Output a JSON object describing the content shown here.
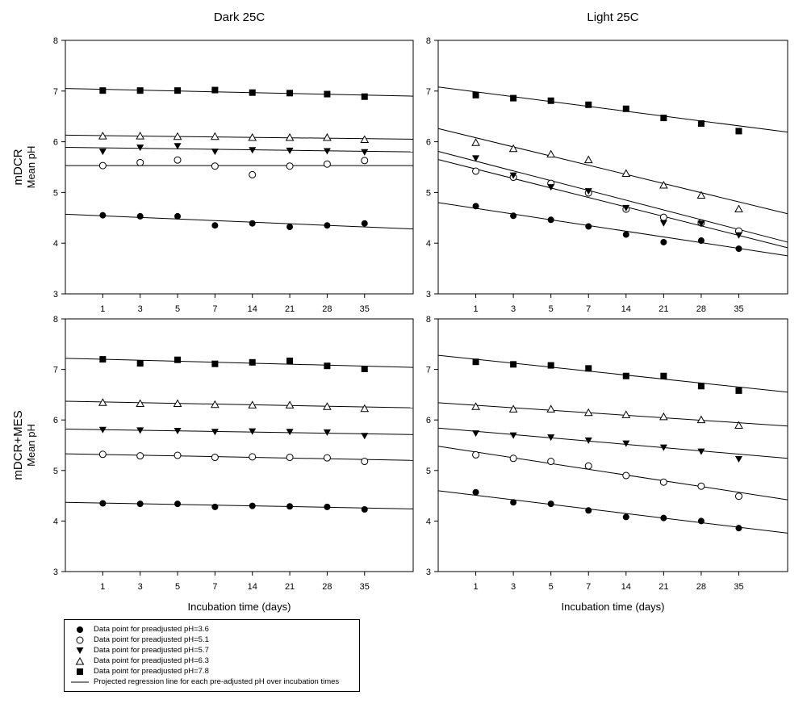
{
  "chart_data": [
    {
      "type": "scatter",
      "title": "Dark 25C",
      "row_label": "mDCR",
      "ylabel": "Mean pH",
      "xlabel": "",
      "ylim": [
        3,
        8
      ],
      "yticks": [
        "3",
        "4",
        "5",
        "6",
        "7",
        "8"
      ],
      "categories": [
        "1",
        "3",
        "5",
        "7",
        "14",
        "21",
        "28",
        "35"
      ],
      "series": [
        {
          "name": "Data point for preadjusted pH=3.6",
          "marker": "circle-filled",
          "values": [
            4.55,
            4.53,
            4.53,
            4.35,
            4.39,
            4.32,
            4.35,
            4.39
          ],
          "fit": [
            4.57,
            4.28
          ]
        },
        {
          "name": "Data point for preadjusted pH=5.1",
          "marker": "circle-open",
          "values": [
            5.53,
            5.59,
            5.64,
            5.52,
            5.35,
            5.52,
            5.56,
            5.63
          ],
          "fit": [
            5.53,
            5.53
          ]
        },
        {
          "name": "Data point for preadjusted pH=5.7",
          "marker": "triangle-down-filled",
          "values": [
            5.8,
            5.88,
            5.91,
            5.8,
            5.83,
            5.82,
            5.81,
            5.79
          ],
          "fit": [
            5.89,
            5.8
          ]
        },
        {
          "name": "Data point for preadjusted pH=6.3",
          "marker": "triangle-up-open",
          "values": [
            6.12,
            6.12,
            6.11,
            6.11,
            6.09,
            6.09,
            6.09,
            6.05
          ],
          "fit": [
            6.13,
            6.05
          ]
        },
        {
          "name": "Data point for preadjusted pH=7.8",
          "marker": "square-filled",
          "values": [
            7.01,
            7.01,
            7.01,
            7.02,
            6.97,
            6.96,
            6.94,
            6.89
          ],
          "fit": [
            7.05,
            6.9
          ]
        }
      ]
    },
    {
      "type": "scatter",
      "title": "Light 25C",
      "row_label": "",
      "ylabel": "",
      "xlabel": "",
      "ylim": [
        3,
        8
      ],
      "yticks": [
        "3",
        "4",
        "5",
        "6",
        "7",
        "8"
      ],
      "categories": [
        "1",
        "3",
        "5",
        "7",
        "14",
        "21",
        "28",
        "35"
      ],
      "series": [
        {
          "name": "Data point for preadjusted pH=3.6",
          "marker": "circle-filled",
          "values": [
            4.73,
            4.54,
            4.46,
            4.33,
            4.17,
            4.02,
            4.05,
            3.89
          ],
          "fit": [
            4.8,
            3.75
          ]
        },
        {
          "name": "Data point for preadjusted pH=5.1",
          "marker": "circle-open",
          "values": [
            5.42,
            5.3,
            5.18,
            4.99,
            4.67,
            4.51,
            4.4,
            4.24
          ],
          "fit": [
            5.65,
            3.91
          ]
        },
        {
          "name": "Data point for preadjusted pH=5.7",
          "marker": "triangle-down-filled",
          "values": [
            5.67,
            5.33,
            5.1,
            5.02,
            4.69,
            4.39,
            4.38,
            4.15
          ],
          "fit": [
            5.81,
            4.02
          ]
        },
        {
          "name": "Data point for preadjusted pH=6.3",
          "marker": "triangle-up-open",
          "values": [
            5.99,
            5.87,
            5.76,
            5.65,
            5.38,
            5.15,
            4.95,
            4.68
          ],
          "fit": [
            6.26,
            4.58
          ]
        },
        {
          "name": "Data point for preadjusted pH=7.8",
          "marker": "square-filled",
          "values": [
            6.92,
            6.86,
            6.81,
            6.73,
            6.65,
            6.47,
            6.36,
            6.21
          ],
          "fit": [
            7.08,
            6.19
          ]
        }
      ]
    },
    {
      "type": "scatter",
      "title": "",
      "row_label": "mDCR+MES",
      "ylabel": "Mean pH",
      "xlabel": "Incubation time (days)",
      "ylim": [
        3,
        8
      ],
      "yticks": [
        "3",
        "4",
        "5",
        "6",
        "7",
        "8"
      ],
      "categories": [
        "1",
        "3",
        "5",
        "7",
        "14",
        "21",
        "28",
        "35"
      ],
      "series": [
        {
          "name": "Data point for preadjusted pH=3.6",
          "marker": "circle-filled",
          "values": [
            4.35,
            4.34,
            4.34,
            4.28,
            4.3,
            4.29,
            4.28,
            4.23
          ],
          "fit": [
            4.37,
            4.24
          ]
        },
        {
          "name": "Data point for preadjusted pH=5.1",
          "marker": "circle-open",
          "values": [
            5.32,
            5.29,
            5.3,
            5.26,
            5.27,
            5.26,
            5.25,
            5.18
          ],
          "fit": [
            5.33,
            5.2
          ]
        },
        {
          "name": "Data point for preadjusted pH=5.7",
          "marker": "triangle-down-filled",
          "values": [
            5.8,
            5.79,
            5.78,
            5.76,
            5.77,
            5.76,
            5.75,
            5.68
          ],
          "fit": [
            5.82,
            5.71
          ]
        },
        {
          "name": "Data point for preadjusted pH=6.3",
          "marker": "triangle-up-open",
          "values": [
            6.35,
            6.33,
            6.33,
            6.31,
            6.3,
            6.3,
            6.27,
            6.23
          ],
          "fit": [
            6.37,
            6.24
          ]
        },
        {
          "name": "Data point for preadjusted pH=7.8",
          "marker": "square-filled",
          "values": [
            7.2,
            7.12,
            7.19,
            7.11,
            7.14,
            7.17,
            7.07,
            7.01
          ],
          "fit": [
            7.22,
            7.04
          ]
        }
      ]
    },
    {
      "type": "scatter",
      "title": "",
      "row_label": "",
      "ylabel": "",
      "xlabel": "Incubation time (days)",
      "ylim": [
        3,
        8
      ],
      "yticks": [
        "3",
        "4",
        "5",
        "6",
        "7",
        "8"
      ],
      "categories": [
        "1",
        "3",
        "5",
        "7",
        "14",
        "21",
        "28",
        "35"
      ],
      "series": [
        {
          "name": "Data point for preadjusted pH=3.6",
          "marker": "circle-filled",
          "values": [
            4.57,
            4.37,
            4.34,
            4.21,
            4.08,
            4.06,
            4.0,
            3.86
          ],
          "fit": [
            4.6,
            3.76
          ]
        },
        {
          "name": "Data point for preadjusted pH=5.1",
          "marker": "circle-open",
          "values": [
            5.31,
            5.24,
            5.18,
            5.09,
            4.9,
            4.77,
            4.69,
            4.49
          ],
          "fit": [
            5.48,
            4.42
          ]
        },
        {
          "name": "Data point for preadjusted pH=5.7",
          "marker": "triangle-down-filled",
          "values": [
            5.73,
            5.69,
            5.65,
            5.59,
            5.53,
            5.45,
            5.37,
            5.22
          ],
          "fit": [
            5.84,
            5.24
          ]
        },
        {
          "name": "Data point for preadjusted pH=6.3",
          "marker": "triangle-up-open",
          "values": [
            6.27,
            6.22,
            6.22,
            6.15,
            6.11,
            6.07,
            6.01,
            5.9
          ],
          "fit": [
            6.34,
            5.88
          ]
        },
        {
          "name": "Data point for preadjusted pH=7.8",
          "marker": "square-filled",
          "values": [
            7.15,
            7.1,
            7.08,
            7.02,
            6.87,
            6.87,
            6.67,
            6.58
          ],
          "fit": [
            7.28,
            6.55
          ]
        }
      ]
    }
  ],
  "legend": {
    "items": [
      {
        "marker": "circle-filled",
        "label": "Data point for preadjusted pH=3.6"
      },
      {
        "marker": "circle-open",
        "label": "Data point for preadjusted pH=5.1"
      },
      {
        "marker": "triangle-down-filled",
        "label": "Data point for preadjusted pH=5.7"
      },
      {
        "marker": "triangle-up-open",
        "label": "Data point for preadjusted pH=6.3"
      },
      {
        "marker": "square-filled",
        "label": "Data point for preadjusted pH=7.8"
      },
      {
        "marker": "line",
        "label": "Projected regression line for each pre-adjusted pH over incubation times"
      }
    ]
  }
}
